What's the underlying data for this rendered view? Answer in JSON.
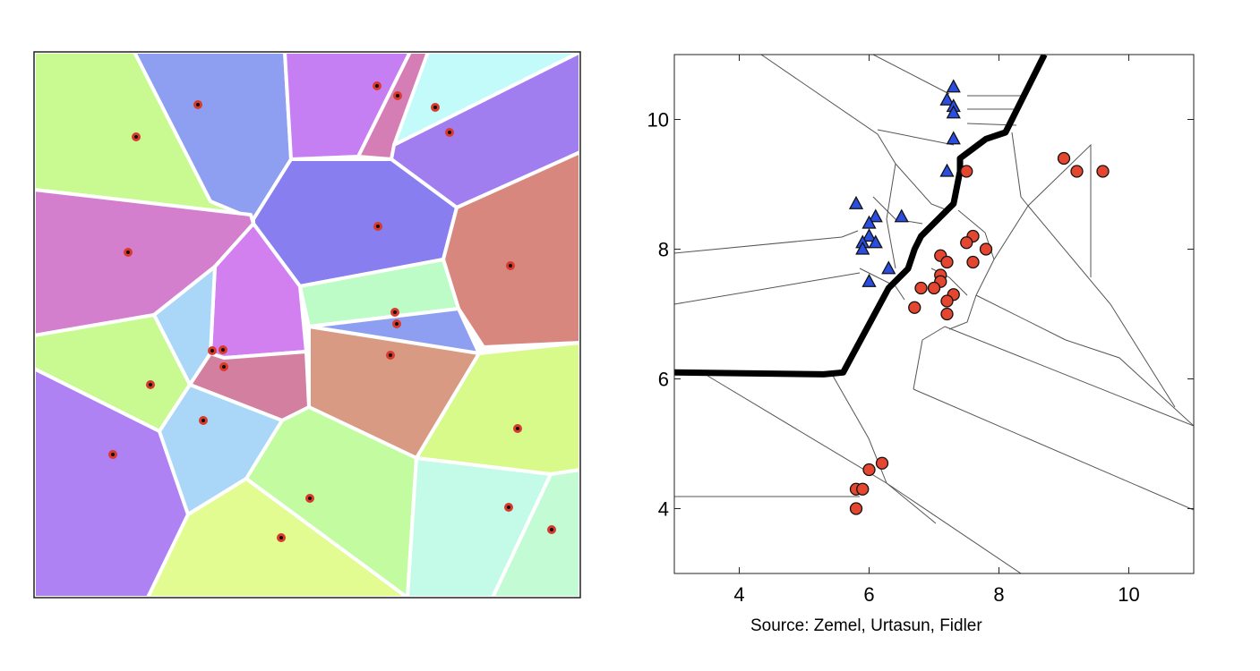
{
  "caption": "Source: Zemel, Urtasun, Fidler",
  "left_diagram": {
    "region_colors": [
      "#c9fa92",
      "#8e9ff2",
      "#c67ff2",
      "#d47eb5",
      "#c3fbfb",
      "#a07ef0",
      "#d47fcd",
      "#887ef0",
      "#d8877f",
      "#d27ff0",
      "#aad6f7",
      "#bdfcc6",
      "#8e9ff2",
      "#c9fa92",
      "#d27fa0",
      "#d99a84",
      "#d7fa8b",
      "#ae82f2",
      "#aad6f7",
      "#c2fba0",
      "#c3fbe8",
      "#c2fbd4",
      "#e2fc92"
    ],
    "site_color": "#d93a2b"
  },
  "chart_data": {
    "type": "scatter",
    "xlim": [
      3,
      11
    ],
    "ylim": [
      3,
      11
    ],
    "x_ticks": [
      "4",
      "6",
      "8",
      "10"
    ],
    "y_ticks": [
      "4",
      "6",
      "8",
      "10"
    ],
    "grid": false,
    "series": [
      {
        "marker": "triangle",
        "color": "#2b4de0",
        "points": [
          [
            7.3,
            10.5
          ],
          [
            7.2,
            10.3
          ],
          [
            7.3,
            10.2
          ],
          [
            7.3,
            10.1
          ],
          [
            7.3,
            9.7
          ],
          [
            7.2,
            9.2
          ],
          [
            5.8,
            8.7
          ],
          [
            6.1,
            8.5
          ],
          [
            6.5,
            8.5
          ],
          [
            6.0,
            8.4
          ],
          [
            6.0,
            8.2
          ],
          [
            6.1,
            8.1
          ],
          [
            5.9,
            8.1
          ],
          [
            5.9,
            8.0
          ],
          [
            6.3,
            7.7
          ],
          [
            6.0,
            7.5
          ]
        ]
      },
      {
        "marker": "circle",
        "color": "#e4462f",
        "points": [
          [
            9.0,
            9.4
          ],
          [
            9.2,
            9.2
          ],
          [
            9.6,
            9.2
          ],
          [
            7.5,
            9.2
          ],
          [
            7.6,
            8.2
          ],
          [
            7.5,
            8.1
          ],
          [
            7.8,
            8.0
          ],
          [
            7.1,
            7.9
          ],
          [
            7.2,
            7.8
          ],
          [
            7.6,
            7.8
          ],
          [
            7.1,
            7.6
          ],
          [
            7.1,
            7.5
          ],
          [
            6.8,
            7.4
          ],
          [
            7.0,
            7.4
          ],
          [
            7.3,
            7.3
          ],
          [
            7.2,
            7.2
          ],
          [
            6.7,
            7.1
          ],
          [
            7.2,
            7.0
          ],
          [
            6.2,
            4.7
          ],
          [
            6.0,
            4.6
          ],
          [
            5.8,
            4.3
          ],
          [
            5.9,
            4.3
          ],
          [
            5.8,
            4.0
          ]
        ]
      }
    ],
    "decision_boundary": [
      [
        3.0,
        6.1
      ],
      [
        5.3,
        6.07
      ],
      [
        5.6,
        6.1
      ],
      [
        6.3,
        7.4
      ],
      [
        6.6,
        7.7
      ],
      [
        6.7,
        8.0
      ],
      [
        6.8,
        8.2
      ],
      [
        7.2,
        8.6
      ],
      [
        7.3,
        8.7
      ],
      [
        7.4,
        9.2
      ],
      [
        7.4,
        9.4
      ],
      [
        7.8,
        9.7
      ],
      [
        8.1,
        9.8
      ],
      [
        8.7,
        11.0
      ]
    ]
  }
}
